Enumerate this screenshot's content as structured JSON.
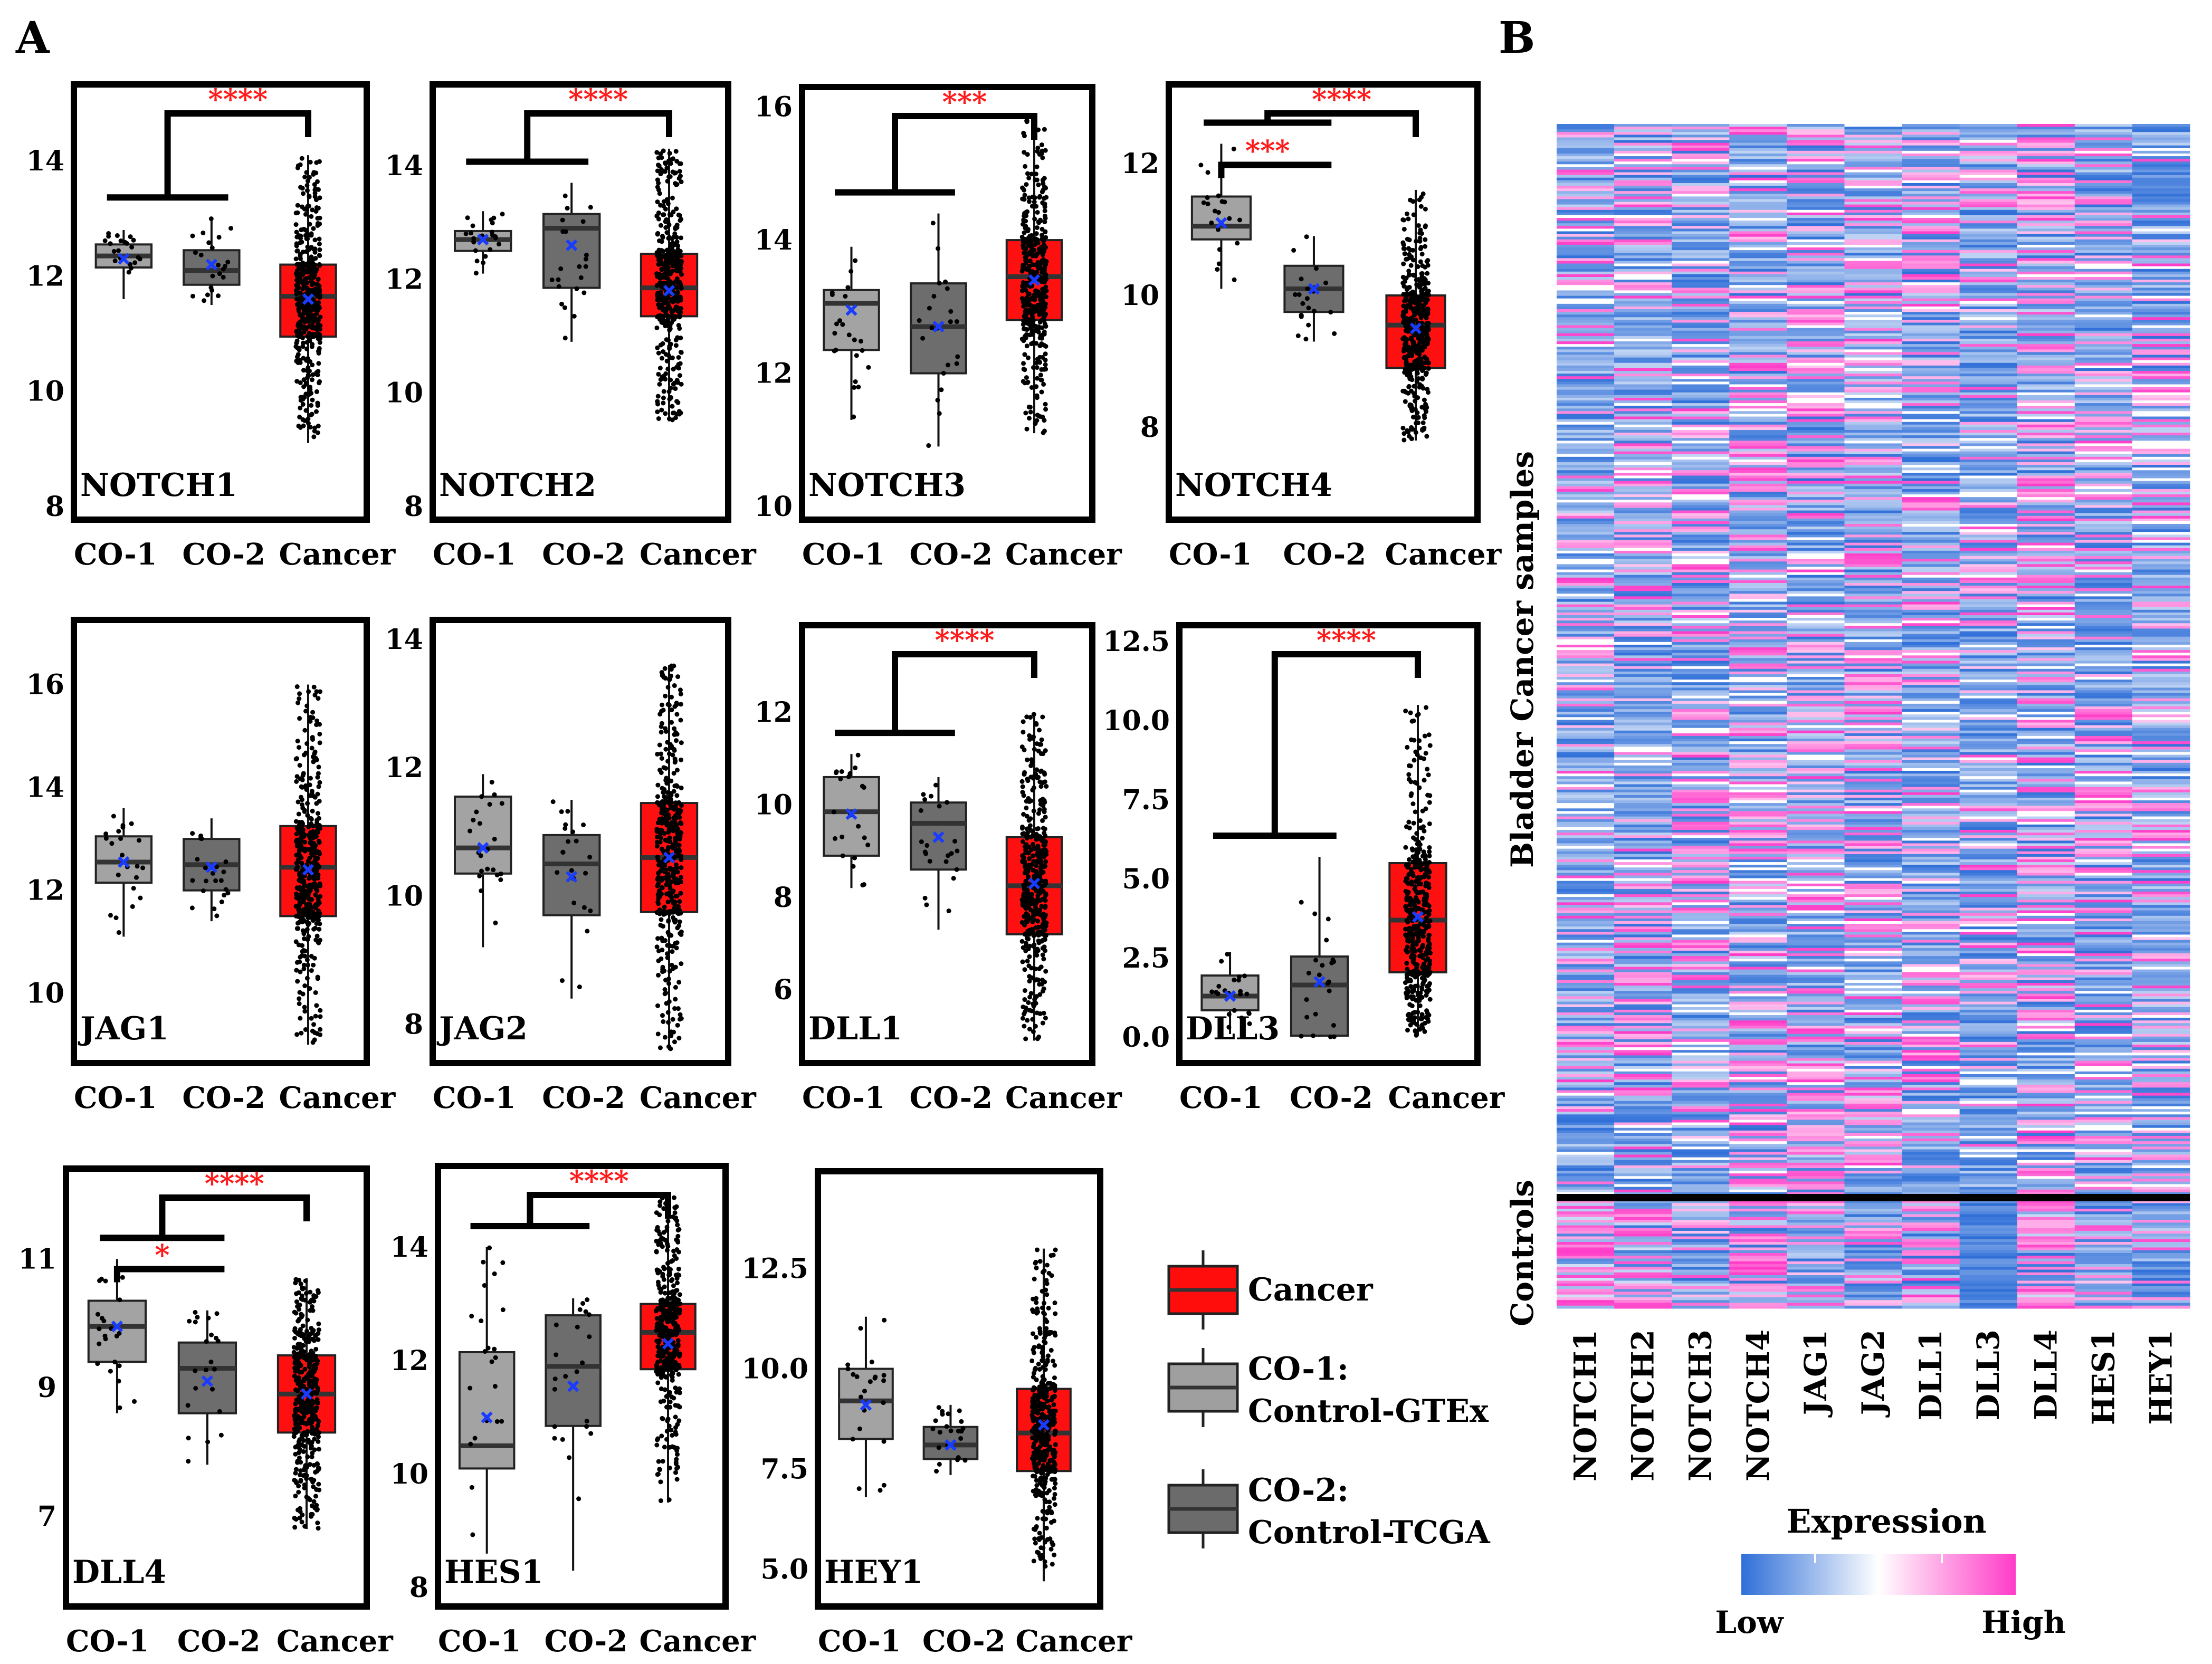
{
  "figure": {
    "panel_a_label": "A",
    "panel_b_label": "B"
  },
  "chart_data": [
    {
      "type": "box",
      "gene": "NOTCH1",
      "categories": [
        "CO-1",
        "CO-2",
        "Cancer"
      ],
      "ylim": [
        8,
        15.1
      ],
      "yticks": [
        "8",
        "10",
        "12",
        "14"
      ],
      "boxes": [
        {
          "q1": 12.15,
          "median": 12.35,
          "q3": 12.55,
          "wlow": 11.6,
          "whigh": 12.8,
          "mean": 12.3
        },
        {
          "q1": 11.85,
          "median": 12.1,
          "q3": 12.45,
          "wlow": 11.5,
          "whigh": 13.0,
          "mean": 12.2
        },
        {
          "q1": 10.95,
          "median": 11.65,
          "q3": 12.2,
          "wlow": 9.1,
          "whigh": 14.1,
          "mean": 11.6
        }
      ],
      "sig": [
        {
          "label": "****",
          "type": "group"
        }
      ]
    },
    {
      "type": "box",
      "gene": "NOTCH2",
      "categories": [
        "CO-1",
        "CO-2",
        "Cancer"
      ],
      "ylim": [
        8,
        15.2
      ],
      "yticks": [
        "8",
        "10",
        "12",
        "14"
      ],
      "boxes": [
        {
          "q1": 12.5,
          "median": 12.7,
          "q3": 12.85,
          "wlow": 12.1,
          "whigh": 13.2,
          "mean": 12.7
        },
        {
          "q1": 11.85,
          "median": 12.9,
          "q3": 13.15,
          "wlow": 10.9,
          "whigh": 13.7,
          "mean": 12.6
        },
        {
          "q1": 11.35,
          "median": 11.85,
          "q3": 12.45,
          "wlow": 9.5,
          "whigh": 14.3,
          "mean": 11.8
        }
      ],
      "sig": [
        {
          "label": "****",
          "type": "group"
        }
      ]
    },
    {
      "type": "box",
      "gene": "NOTCH3",
      "categories": [
        "CO-1",
        "CO-2",
        "Cancer"
      ],
      "ylim": [
        10,
        16.1
      ],
      "yticks": [
        "10",
        "12",
        "14",
        "16"
      ],
      "boxes": [
        {
          "q1": 12.35,
          "median": 13.05,
          "q3": 13.25,
          "wlow": 11.3,
          "whigh": 13.9,
          "mean": 12.95
        },
        {
          "q1": 12.0,
          "median": 12.7,
          "q3": 13.35,
          "wlow": 10.9,
          "whigh": 14.4,
          "mean": 12.7
        },
        {
          "q1": 12.8,
          "median": 13.45,
          "q3": 14.0,
          "wlow": 11.1,
          "whigh": 15.8,
          "mean": 13.4
        }
      ],
      "sig": [
        {
          "label": "***",
          "type": "group"
        }
      ]
    },
    {
      "type": "box",
      "gene": "NOTCH4",
      "categories": [
        "CO-1",
        "CO-2",
        "Cancer"
      ],
      "ylim": [
        6.8,
        13.0
      ],
      "yticks": [
        "8",
        "10",
        "12"
      ],
      "boxes": [
        {
          "q1": 10.85,
          "median": 11.05,
          "q3": 11.5,
          "wlow": 10.1,
          "whigh": 12.3,
          "mean": 11.1
        },
        {
          "q1": 9.75,
          "median": 10.1,
          "q3": 10.45,
          "wlow": 9.3,
          "whigh": 10.9,
          "mean": 10.1
        },
        {
          "q1": 8.9,
          "median": 9.55,
          "q3": 10.0,
          "wlow": 7.8,
          "whigh": 11.6,
          "mean": 9.5
        }
      ],
      "sig": [
        {
          "label": "***",
          "type": "pair"
        },
        {
          "label": "****",
          "type": "group"
        }
      ]
    },
    {
      "type": "box",
      "gene": "JAG1",
      "categories": [
        "CO-1",
        "CO-2",
        "Cancer"
      ],
      "ylim": [
        8.9,
        17
      ],
      "yticks": [
        "10",
        "12",
        "14",
        "16"
      ],
      "boxes": [
        {
          "q1": 12.15,
          "median": 12.55,
          "q3": 13.05,
          "wlow": 11.1,
          "whigh": 13.6,
          "mean": 12.55
        },
        {
          "q1": 12.0,
          "median": 12.5,
          "q3": 13.0,
          "wlow": 11.4,
          "whigh": 13.4,
          "mean": 12.45
        },
        {
          "q1": 11.5,
          "median": 12.45,
          "q3": 13.25,
          "wlow": 9.0,
          "whigh": 16.0,
          "mean": 12.4
        }
      ],
      "sig": []
    },
    {
      "type": "box",
      "gene": "JAG2",
      "categories": [
        "CO-1",
        "CO-2",
        "Cancer"
      ],
      "ylim": [
        7.6,
        14.1
      ],
      "yticks": [
        "8",
        "10",
        "12",
        "14"
      ],
      "boxes": [
        {
          "q1": 10.35,
          "median": 10.75,
          "q3": 11.55,
          "wlow": 9.2,
          "whigh": 11.9,
          "mean": 10.75
        },
        {
          "q1": 9.7,
          "median": 10.5,
          "q3": 10.95,
          "wlow": 8.4,
          "whigh": 11.5,
          "mean": 10.3
        },
        {
          "q1": 9.75,
          "median": 10.6,
          "q3": 11.45,
          "wlow": 7.6,
          "whigh": 13.6,
          "mean": 10.6
        }
      ],
      "sig": []
    },
    {
      "type": "box",
      "gene": "DLL1",
      "categories": [
        "CO-1",
        "CO-2",
        "Cancer"
      ],
      "ylim": [
        4.7,
        13.6
      ],
      "yticks": [
        "6",
        "8",
        "10",
        "12"
      ],
      "boxes": [
        {
          "q1": 8.9,
          "median": 9.85,
          "q3": 10.6,
          "wlow": 8.2,
          "whigh": 11.1,
          "mean": 9.8
        },
        {
          "q1": 8.6,
          "median": 9.6,
          "q3": 10.05,
          "wlow": 7.3,
          "whigh": 10.6,
          "mean": 9.3
        },
        {
          "q1": 7.2,
          "median": 8.25,
          "q3": 9.3,
          "wlow": 4.9,
          "whigh": 12.0,
          "mean": 8.3
        }
      ],
      "sig": [
        {
          "label": "****",
          "type": "group"
        }
      ]
    },
    {
      "type": "box",
      "gene": "DLL3",
      "categories": [
        "CO-1",
        "CO-2",
        "Cancer"
      ],
      "ylim": [
        -0.4,
        12.6
      ],
      "yticks": [
        "0.0",
        "2.5",
        "5.0",
        "7.5",
        "10.0",
        "12.5"
      ],
      "boxes": [
        {
          "q1": 0.85,
          "median": 1.3,
          "q3": 1.95,
          "wlow": 0.1,
          "whigh": 2.7,
          "mean": 1.3
        },
        {
          "q1": 0.05,
          "median": 1.65,
          "q3": 2.55,
          "wlow": 0.0,
          "whigh": 5.7,
          "mean": 1.75
        },
        {
          "q1": 2.05,
          "median": 3.7,
          "q3": 5.5,
          "wlow": 0.05,
          "whigh": 10.5,
          "mean": 3.8
        }
      ],
      "sig": [
        {
          "label": "****",
          "type": "group"
        }
      ]
    },
    {
      "type": "box",
      "gene": "DLL4",
      "categories": [
        "CO-1",
        "CO-2",
        "Cancer"
      ],
      "ylim": [
        5.8,
        12.2
      ],
      "yticks": [
        "7",
        "9",
        "11"
      ],
      "boxes": [
        {
          "q1": 9.4,
          "median": 9.95,
          "q3": 10.35,
          "wlow": 8.6,
          "whigh": 11.0,
          "mean": 9.95
        },
        {
          "q1": 8.6,
          "median": 9.3,
          "q3": 9.7,
          "wlow": 7.8,
          "whigh": 10.2,
          "mean": 9.1
        },
        {
          "q1": 8.3,
          "median": 8.9,
          "q3": 9.5,
          "wlow": 6.8,
          "whigh": 10.7,
          "mean": 8.9
        }
      ],
      "sig": [
        {
          "label": "*",
          "type": "pair"
        },
        {
          "label": "****",
          "type": "group"
        }
      ]
    },
    {
      "type": "box",
      "gene": "HES1",
      "categories": [
        "CO-1",
        "CO-2",
        "Cancer"
      ],
      "ylim": [
        7.9,
        15.2
      ],
      "yticks": [
        "8",
        "10",
        "12",
        "14"
      ],
      "boxes": [
        {
          "q1": 10.1,
          "median": 10.5,
          "q3": 12.15,
          "wlow": 8.6,
          "whigh": 14.0,
          "mean": 11.0
        },
        {
          "q1": 10.85,
          "median": 11.9,
          "q3": 12.8,
          "wlow": 8.3,
          "whigh": 13.1,
          "mean": 11.55
        },
        {
          "q1": 11.85,
          "median": 12.5,
          "q3": 13.0,
          "wlow": 9.5,
          "whigh": 14.9,
          "mean": 12.3
        }
      ],
      "sig": [
        {
          "label": "****",
          "type": "group"
        }
      ]
    },
    {
      "type": "box",
      "gene": "HEY1",
      "categories": [
        "CO-1",
        "CO-2",
        "Cancer"
      ],
      "ylim": [
        4.4,
        14.6
      ],
      "yticks": [
        "5.0",
        "7.5",
        "10.0",
        "12.5"
      ],
      "boxes": [
        {
          "q1": 8.25,
          "median": 9.2,
          "q3": 10.0,
          "wlow": 6.8,
          "whigh": 11.3,
          "mean": 9.1
        },
        {
          "q1": 7.75,
          "median": 8.1,
          "q3": 8.55,
          "wlow": 7.35,
          "whigh": 9.1,
          "mean": 8.1
        },
        {
          "q1": 7.45,
          "median": 8.4,
          "q3": 9.5,
          "wlow": 4.7,
          "whigh": 13.0,
          "mean": 8.6
        }
      ],
      "sig": []
    },
    {
      "type": "heatmap",
      "title": "",
      "x_labels": [
        "NOTCH1",
        "NOTCH2",
        "NOTCH3",
        "NOTCH4",
        "JAG1",
        "JAG2",
        "DLL1",
        "DLL3",
        "DLL4",
        "HES1",
        "HEY1"
      ],
      "row_groups": [
        "Bladder Cancer samples",
        "Controls"
      ],
      "legend_title": "Expression",
      "legend_low": "Low",
      "legend_high": "High",
      "colors": {
        "low": "#2f6fd8",
        "mid": "#ffffff",
        "high": "#ff3cc8"
      }
    }
  ],
  "legend": {
    "items": [
      {
        "label": "Cancer",
        "sub": "",
        "color": "#ff0d0d"
      },
      {
        "label": "CO-1:",
        "sub": "Control-GTEx",
        "color": "#9f9f9f"
      },
      {
        "label": "CO-2:",
        "sub": "Control-TCGA",
        "color": "#6b6b6b"
      }
    ]
  }
}
